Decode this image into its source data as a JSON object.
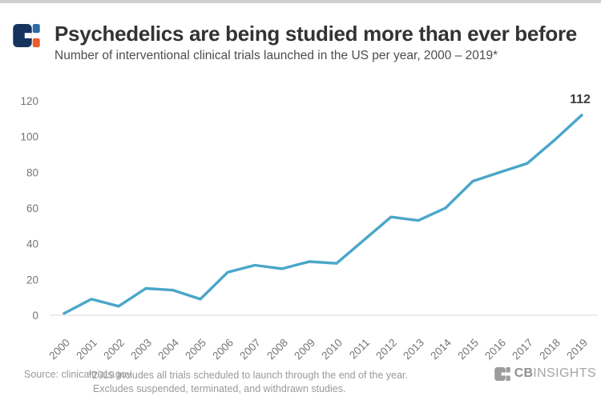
{
  "header": {
    "title": "Psychedelics are being studied more than ever before",
    "subtitle": "Number of interventional clinical trials launched in the US per year, 2000 – 2019*"
  },
  "chart_data": {
    "type": "line",
    "categories": [
      "2000",
      "2001",
      "2002",
      "2003",
      "2004",
      "2005",
      "2006",
      "2007",
      "2008",
      "2009",
      "2010",
      "2011",
      "2012",
      "2013",
      "2014",
      "2015",
      "2016",
      "2017",
      "2018",
      "2019"
    ],
    "values": [
      1,
      9,
      5,
      15,
      14,
      9,
      24,
      28,
      26,
      30,
      29,
      42,
      55,
      53,
      60,
      75,
      80,
      85,
      98,
      112
    ],
    "end_point_label": "112",
    "title": "Psychedelics are being studied more than ever before",
    "xlabel": "",
    "ylabel": "",
    "yticks": [
      0,
      20,
      40,
      60,
      80,
      100,
      120
    ],
    "ylim": [
      0,
      120
    ],
    "grid": false,
    "legend": "none",
    "line_color": "#4aa6c9",
    "axis_line_color": "#e0e0e0",
    "tick_label_color": "#757575"
  },
  "footer": {
    "source": "Source: clinicaltrials.gov",
    "note_line1": "*2019 includes all trials scheduled to launch through the end of the year.",
    "note_line2": "Excludes suspended, terminated, and withdrawn studies.",
    "brand_bold": "CB",
    "brand_light": "INSIGHTS"
  },
  "colors": {
    "logo_navy": "#16335e",
    "logo_blue": "#2e6ba8",
    "logo_orange": "#ed5c2c",
    "footer_logo_gray": "#9c9c9c",
    "top_bar": "#cfcfcf"
  }
}
